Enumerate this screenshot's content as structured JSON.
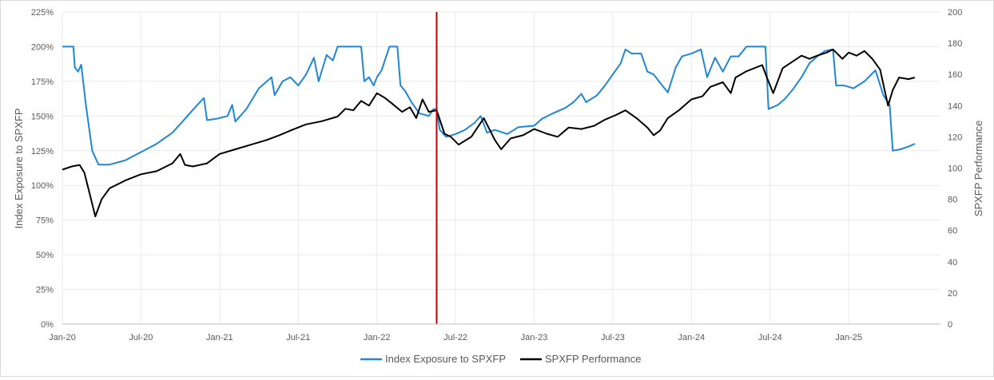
{
  "chart_data": {
    "type": "line",
    "title": "",
    "x_range": [
      "2020-01",
      "2025-08"
    ],
    "x_ticks": [
      "Jan-20",
      "Jul-20",
      "Jan-21",
      "Jul-21",
      "Jan-22",
      "Jul-22",
      "Jan-23",
      "Jul-23",
      "Jan-24",
      "Jul-24",
      "Jan-25"
    ],
    "y_left": {
      "label": "Index Exposure to SPXFP",
      "range": [
        0,
        225
      ],
      "ticks": [
        "0%",
        "25%",
        "50%",
        "75%",
        "100%",
        "125%",
        "150%",
        "175%",
        "200%",
        "225%"
      ]
    },
    "y_right": {
      "label": "SPXFP Performance",
      "range": [
        0,
        200
      ],
      "ticks": [
        "0",
        "20",
        "40",
        "60",
        "80",
        "100",
        "120",
        "140",
        "160",
        "180",
        "200"
      ]
    },
    "gridlines": true,
    "vertical_marker": {
      "x": 2022.38,
      "color": "#c00000"
    },
    "series": [
      {
        "name": "Index Exposure to SPXFP",
        "axis": "left",
        "color": "#1f86d8",
        "points": [
          [
            2020.0,
            200
          ],
          [
            2020.07,
            200
          ],
          [
            2020.08,
            185
          ],
          [
            2020.1,
            182
          ],
          [
            2020.12,
            187
          ],
          [
            2020.15,
            158
          ],
          [
            2020.19,
            125
          ],
          [
            2020.23,
            115
          ],
          [
            2020.3,
            115
          ],
          [
            2020.4,
            118
          ],
          [
            2020.5,
            124
          ],
          [
            2020.6,
            130
          ],
          [
            2020.7,
            138
          ],
          [
            2020.78,
            148
          ],
          [
            2020.85,
            157
          ],
          [
            2020.9,
            163
          ],
          [
            2020.92,
            147
          ],
          [
            2020.98,
            148
          ],
          [
            2021.05,
            150
          ],
          [
            2021.08,
            158
          ],
          [
            2021.1,
            146
          ],
          [
            2021.17,
            155
          ],
          [
            2021.25,
            170
          ],
          [
            2021.33,
            178
          ],
          [
            2021.35,
            165
          ],
          [
            2021.4,
            175
          ],
          [
            2021.45,
            178
          ],
          [
            2021.5,
            172
          ],
          [
            2021.55,
            180
          ],
          [
            2021.6,
            192
          ],
          [
            2021.63,
            175
          ],
          [
            2021.68,
            194
          ],
          [
            2021.72,
            190
          ],
          [
            2021.75,
            200
          ],
          [
            2021.9,
            200
          ],
          [
            2021.92,
            175
          ],
          [
            2021.95,
            178
          ],
          [
            2021.98,
            172
          ],
          [
            2022.0,
            178
          ],
          [
            2022.03,
            183
          ],
          [
            2022.08,
            200
          ],
          [
            2022.13,
            200
          ],
          [
            2022.15,
            172
          ],
          [
            2022.18,
            168
          ],
          [
            2022.22,
            160
          ],
          [
            2022.27,
            152
          ],
          [
            2022.33,
            150
          ],
          [
            2022.36,
            155
          ],
          [
            2022.38,
            155
          ],
          [
            2022.4,
            140
          ],
          [
            2022.44,
            135
          ],
          [
            2022.5,
            137
          ],
          [
            2022.56,
            140
          ],
          [
            2022.62,
            145
          ],
          [
            2022.66,
            150
          ],
          [
            2022.7,
            138
          ],
          [
            2022.75,
            140
          ],
          [
            2022.83,
            137
          ],
          [
            2022.9,
            142
          ],
          [
            2023.0,
            143
          ],
          [
            2023.05,
            148
          ],
          [
            2023.12,
            152
          ],
          [
            2023.2,
            156
          ],
          [
            2023.25,
            160
          ],
          [
            2023.3,
            166
          ],
          [
            2023.33,
            160
          ],
          [
            2023.4,
            165
          ],
          [
            2023.45,
            172
          ],
          [
            2023.5,
            180
          ],
          [
            2023.55,
            188
          ],
          [
            2023.58,
            198
          ],
          [
            2023.62,
            195
          ],
          [
            2023.68,
            195
          ],
          [
            2023.72,
            182
          ],
          [
            2023.76,
            180
          ],
          [
            2023.8,
            174
          ],
          [
            2023.85,
            167
          ],
          [
            2023.9,
            185
          ],
          [
            2023.94,
            193
          ],
          [
            2024.0,
            195
          ],
          [
            2024.06,
            198
          ],
          [
            2024.1,
            178
          ],
          [
            2024.15,
            192
          ],
          [
            2024.2,
            182
          ],
          [
            2024.25,
            193
          ],
          [
            2024.3,
            193
          ],
          [
            2024.35,
            200
          ],
          [
            2024.47,
            200
          ],
          [
            2024.49,
            155
          ],
          [
            2024.55,
            158
          ],
          [
            2024.6,
            163
          ],
          [
            2024.65,
            170
          ],
          [
            2024.7,
            178
          ],
          [
            2024.75,
            188
          ],
          [
            2024.8,
            193
          ],
          [
            2024.85,
            197
          ],
          [
            2024.9,
            198
          ],
          [
            2024.92,
            172
          ],
          [
            2024.97,
            172
          ],
          [
            2025.03,
            170
          ],
          [
            2025.1,
            175
          ],
          [
            2025.17,
            183
          ],
          [
            2025.22,
            165
          ],
          [
            2025.26,
            158
          ],
          [
            2025.28,
            125
          ],
          [
            2025.33,
            126
          ],
          [
            2025.38,
            128
          ],
          [
            2025.42,
            130
          ]
        ]
      },
      {
        "name": "SPXFP Performance",
        "axis": "right",
        "color": "#000000",
        "points": [
          [
            2020.0,
            99
          ],
          [
            2020.06,
            101
          ],
          [
            2020.11,
            102
          ],
          [
            2020.14,
            97
          ],
          [
            2020.17,
            85
          ],
          [
            2020.21,
            69
          ],
          [
            2020.25,
            80
          ],
          [
            2020.3,
            87
          ],
          [
            2020.4,
            92
          ],
          [
            2020.5,
            96
          ],
          [
            2020.6,
            98
          ],
          [
            2020.7,
            103
          ],
          [
            2020.75,
            109
          ],
          [
            2020.78,
            102
          ],
          [
            2020.83,
            101
          ],
          [
            2020.92,
            103
          ],
          [
            2021.0,
            109
          ],
          [
            2021.1,
            112
          ],
          [
            2021.2,
            115
          ],
          [
            2021.3,
            118
          ],
          [
            2021.38,
            121
          ],
          [
            2021.45,
            124
          ],
          [
            2021.55,
            128
          ],
          [
            2021.65,
            130
          ],
          [
            2021.75,
            133
          ],
          [
            2021.8,
            138
          ],
          [
            2021.85,
            137
          ],
          [
            2021.9,
            143
          ],
          [
            2021.95,
            140
          ],
          [
            2022.0,
            148
          ],
          [
            2022.05,
            145
          ],
          [
            2022.1,
            141
          ],
          [
            2022.16,
            136
          ],
          [
            2022.21,
            139
          ],
          [
            2022.25,
            132
          ],
          [
            2022.29,
            144
          ],
          [
            2022.33,
            136
          ],
          [
            2022.38,
            137
          ],
          [
            2022.43,
            122
          ],
          [
            2022.47,
            120
          ],
          [
            2022.52,
            115
          ],
          [
            2022.6,
            120
          ],
          [
            2022.68,
            132
          ],
          [
            2022.75,
            118
          ],
          [
            2022.79,
            112
          ],
          [
            2022.85,
            119
          ],
          [
            2022.93,
            121
          ],
          [
            2023.0,
            125
          ],
          [
            2023.08,
            122
          ],
          [
            2023.15,
            120
          ],
          [
            2023.22,
            126
          ],
          [
            2023.3,
            125
          ],
          [
            2023.38,
            127
          ],
          [
            2023.45,
            131
          ],
          [
            2023.52,
            134
          ],
          [
            2023.58,
            137
          ],
          [
            2023.65,
            132
          ],
          [
            2023.72,
            126
          ],
          [
            2023.76,
            121
          ],
          [
            2023.8,
            124
          ],
          [
            2023.85,
            132
          ],
          [
            2023.92,
            137
          ],
          [
            2024.0,
            144
          ],
          [
            2024.07,
            146
          ],
          [
            2024.12,
            152
          ],
          [
            2024.2,
            155
          ],
          [
            2024.25,
            148
          ],
          [
            2024.28,
            158
          ],
          [
            2024.35,
            162
          ],
          [
            2024.45,
            166
          ],
          [
            2024.48,
            158
          ],
          [
            2024.52,
            148
          ],
          [
            2024.58,
            164
          ],
          [
            2024.64,
            168
          ],
          [
            2024.7,
            172
          ],
          [
            2024.75,
            170
          ],
          [
            2024.8,
            172
          ],
          [
            2024.86,
            174
          ],
          [
            2024.9,
            176
          ],
          [
            2024.96,
            170
          ],
          [
            2025.0,
            174
          ],
          [
            2025.05,
            172
          ],
          [
            2025.1,
            175
          ],
          [
            2025.15,
            170
          ],
          [
            2025.2,
            163
          ],
          [
            2025.25,
            140
          ],
          [
            2025.28,
            150
          ],
          [
            2025.32,
            158
          ],
          [
            2025.38,
            157
          ],
          [
            2025.42,
            158
          ]
        ]
      }
    ]
  }
}
